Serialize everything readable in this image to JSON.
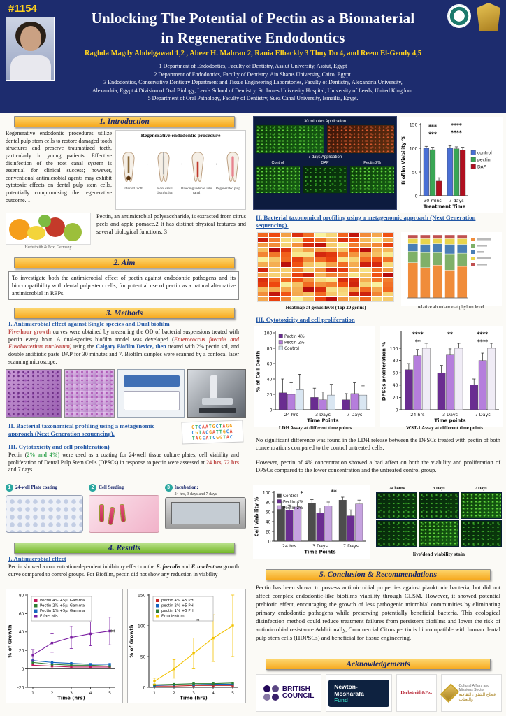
{
  "theme": {
    "header_bg": "#1d2c6e",
    "accent_yellow": "#ffd21e",
    "section_orange": "#f6a91f",
    "section_green": "#74b728",
    "heading_blue": "#2055a4"
  },
  "header": {
    "poster_number": "#1154",
    "title_line1": "Unlocking The Potential of Pectin as a Biomaterial",
    "title_line2": "in Regenerative Endodontics",
    "authors": "Raghda Magdy Abdelgawad 1,2 , Abeer H. Mahran 2, Rania Elbackly 3  Thuy Do 4, and Reem El-Gendy 4,5",
    "affiliations": [
      "1 Department of Endodontics, Faculty of Dentistry, Assiut University, Assiut, Egypt",
      "2 Department of Endodontics, Faculty of Dentistry, Ain Shams University, Cairo, Egypt.",
      "3 Endodontics, Conservative Dentistry Department and Tissue Engineering Laboratories, Faculty of Dentistry, Alexandria University,",
      "Alexandria, Egypt.4 Division of Oral Biology, Leeds School of Dentistry, St. James University Hospital, University of Leeds, United Kingdom.",
      "5 Department of Oral Pathology, Faculty of Dentistry, Suez Canal University, Ismailia, Egypt."
    ]
  },
  "intro": {
    "heading": "1. Introduction",
    "text": "Regenerative endodontic procedures utilize dental pulp stem cells to restore damaged tooth structures and preserve traumatized teeth, particularly in young patients. Effective disinfection of the root canal system is essential for clinical success; however, conventional antimicrobial agents may exhibit cytotoxic effects on dental pulp stem cells, potentially compromising the regenerative outcome. 1",
    "diagram_title": "Regenerative endodontic procedure",
    "diagram_labels": [
      "Infected tooth",
      "Root canal disinfection",
      "Bleeding induced into canal",
      "Regenerated pulp"
    ],
    "fruit_caption": "Herbstreith & Fox, Germany",
    "pectin_text": "Pectin, an antimicrobial polysaccharide, is extracted from citrus peels and apple pomace.2 It has distinct physical features and several biological functions. 3"
  },
  "aim": {
    "heading": "2. Aim",
    "text": "To investigate both the antimicrobial effect of pectin against endodontic pathogens and its biocompatibility with dental pulp stem cells, for potential use of pectin as a natural alternative antimicrobial in REPs."
  },
  "methods": {
    "heading": "3. Methods",
    "h1": "I. Antimicrobial effect against Single species and Dual biofilm",
    "p1_a": "Five-hour growth",
    "p1_b": " curves were obtained by measuring the OD of bacterial suspensions treated with pectin every hour. A dual-species biofilm model was developed (",
    "p1_c": "Enterococcus faecalis and Fusobacterium nucleatum)",
    "p1_d": " using the ",
    "p1_e": "Calgary Biofilm Device, then",
    "p1_f": " treated with 2% pectin sol, and double antibiotic paste DAP for 30 minutes and 7. Biofilm samples were scanned by a confocal laser scanning microscope.",
    "h2": "II. Bacterial taxonomical profiling using a metagenomic approach (Next Generation sequencing).",
    "h3": "III. Cytotoxicity and cell proliferation)",
    "p2_a": "Pectin (",
    "p2_b": "2% and 4%)",
    "p2_c": " were used as a coating for 24-well tissue culture plates, cell viability and proliferation of Dental Pulp Stem Cells (DPSCs) in response to pectin were assessed at ",
    "p2_d": "24 hrs, 72 hrs",
    "p2_e": " and 7 days.",
    "dna_text": "GTCAATGCTAGG CGTACGATTGCA TAGCATCGGTAC",
    "steps": [
      {
        "num": "1",
        "label": "24-well Plate coating"
      },
      {
        "num": "2",
        "label": "Cell Seeding"
      },
      {
        "num": "3",
        "label": "Incubation:",
        "sub": "24 hrs, 3 days and 7 days"
      }
    ]
  },
  "results": {
    "heading": "4. Results",
    "h1": "I. Antimicrobial effect",
    "p1_a": "Pectin showed a concentration-dependent inhibitory effect on the ",
    "p1_b": "E. faecalis",
    "p1_c": " and ",
    "p1_d": "F. nucleatum",
    "p1_e": " growth curve compared to control groups. For Biofilm, pectin did not show any reduction in viability",
    "confocal": {
      "label_30min": "30 minutes Application",
      "label_7day": "7 days Application",
      "row_labels": [
        "Control",
        "DAP",
        "Pectin 2%"
      ]
    },
    "h2": "II. Bacterial taxonomical profiling using a metagenomic approach (Next Generation sequencing).",
    "heatmap": {
      "rows": 14,
      "cols": 12
    },
    "heatmap_caption": "Heatmap at genus level (Top 20 genus)",
    "phylum_caption": "relative abundance at phylum level",
    "h3": "III. Cytotoxicity and cell proliferation",
    "ldh_caption": "LDH Assay at different  time points",
    "wst_caption": "WST-1 Assay at different  time points",
    "note1": "No significant difference was found in the LDH release between the DPSCs treated with pectin of both concentrations compared to the control untreated cells.",
    "note2": "However, pectin of 4% concentration showed a bad affect on both the viability and proliferation of DPSCs compared to the lower concentration and the untreated control group.",
    "livedead_cols": [
      "24 hours",
      "3 Days",
      "7 Days"
    ],
    "livedead_caption": "live/dead viability stain"
  },
  "conclusion": {
    "heading": "5. Conclusion & Recommendations",
    "text": "Pectin has been shown to possess antimicrobial properties against planktonic bacteria, but did not affect complex endodontic-like biofilms viability through CLSM. However, it showed potential prebiotic effect, encouraging the growth of less pathogenic microbial communities by eliminating primary endodontic pathogens while preserving potentially beneficial bacteria. This ecological disinfection method could reduce treatment failures from persistent biofilms and lower the risk of antimicrobial resistance Additionally, Commercial Citrus pectin is biocompatible with human dental pulp stem cells (HDPSCs) and beneficial for tissue engineering."
  },
  "ack": {
    "heading": "Acknowledgements",
    "bc_line1": "BRITISH",
    "bc_line2": "COUNCIL",
    "nm_line1": "Newton-Mosharafa",
    "nm_line2": "Fund",
    "hf_text": "Herbstreith&Fox",
    "ca_line1": "Cultural Affairs and Missions Sector",
    "ca_line2": "قطاع الشئون الثقافية والبعثات"
  },
  "chart_data": [
    {
      "id": "biofilm-viability",
      "type": "bar",
      "ylabel": "Biofilm Viability %",
      "xlabel": "Treatment Time",
      "ylim": [
        0,
        150
      ],
      "yticks": [
        0,
        50,
        100,
        150
      ],
      "categories": [
        "30 mins",
        "7 days"
      ],
      "series": [
        {
          "name": "control",
          "color": "#4a6fd4",
          "values": [
            100,
            100
          ],
          "errors": [
            4,
            5
          ]
        },
        {
          "name": "pectin",
          "color": "#3aa655",
          "values": [
            97,
            99
          ],
          "errors": [
            5,
            4
          ]
        },
        {
          "name": "DAP",
          "color": "#b01020",
          "values": [
            31,
            96
          ],
          "errors": [
            7,
            6
          ]
        }
      ],
      "legend_pos": "right",
      "annotations": [
        {
          "t": "***",
          "x": 0.25,
          "y": 0.06
        },
        {
          "t": "***",
          "x": 0.25,
          "y": 0.16
        },
        {
          "t": "****",
          "x": 0.75,
          "y": 0.04
        },
        {
          "t": "****",
          "x": 0.75,
          "y": 0.14
        }
      ]
    },
    {
      "id": "ldh-assay",
      "type": "bar",
      "ylabel": "% of Cell Death",
      "xlabel": "Time Points",
      "ylim": [
        0,
        100
      ],
      "yticks": [
        0,
        20,
        40,
        60,
        80,
        100
      ],
      "categories": [
        "24 hrs",
        "3 Days",
        "7 Days"
      ],
      "series": [
        {
          "name": "Pectin 4%",
          "color": "#6a2d91",
          "values": [
            22,
            16,
            13
          ],
          "errors": [
            18,
            12,
            8
          ]
        },
        {
          "name": "Pectin 2%",
          "color": "#b57edc",
          "values": [
            20,
            13,
            21
          ],
          "errors": [
            15,
            10,
            14
          ]
        },
        {
          "name": "Control",
          "color": "#d9e6f2",
          "values": [
            26,
            19,
            19
          ],
          "errors": [
            20,
            14,
            12
          ]
        }
      ],
      "legend_pos": "inside"
    },
    {
      "id": "wst1-assay",
      "type": "bar",
      "ylabel": "DPSCs proliferation %",
      "xlabel": "Time points",
      "ylim": [
        0,
        125
      ],
      "yticks": [
        0,
        20,
        40,
        60,
        80,
        100
      ],
      "categories": [
        "24 hrs",
        "3 Days",
        "7 Days"
      ],
      "series": [
        {
          "name": "Pectin 4%",
          "color": "#6a2d91",
          "values": [
            65,
            60,
            40
          ],
          "errors": [
            10,
            12,
            10
          ]
        },
        {
          "name": "Pectin 2%",
          "color": "#b57edc",
          "values": [
            88,
            90,
            80
          ],
          "errors": [
            10,
            9,
            12
          ]
        },
        {
          "name": "Control",
          "color": "#f0ecf6",
          "values": [
            100,
            100,
            100
          ],
          "errors": [
            8,
            8,
            8
          ]
        }
      ],
      "annotations": [
        {
          "t": "****",
          "x": 0.17,
          "y": 0.04
        },
        {
          "t": "**",
          "x": 0.17,
          "y": 0.14
        },
        {
          "t": "**",
          "x": 0.5,
          "y": 0.04
        },
        {
          "t": "****",
          "x": 0.83,
          "y": 0.04
        },
        {
          "t": "****",
          "x": 0.83,
          "y": 0.14
        }
      ]
    },
    {
      "id": "cell-viability",
      "type": "bar",
      "ylabel": "Cell viability %",
      "xlabel": "Time Points",
      "ylim": [
        0,
        100
      ],
      "yticks": [
        0,
        20,
        40,
        60,
        80,
        100
      ],
      "categories": [
        "24 hrs",
        "3 Days",
        "7 Days"
      ],
      "series": [
        {
          "name": "Control",
          "color": "#4d4d4d",
          "values": [
            72,
            78,
            84
          ],
          "errors": [
            8,
            7,
            6
          ]
        },
        {
          "name": "Pectin 4%",
          "color": "#6a2d91",
          "values": [
            64,
            58,
            52
          ],
          "errors": [
            10,
            10,
            12
          ]
        },
        {
          "name": "Pectin 2%",
          "color": "#c6a3e0",
          "values": [
            70,
            72,
            76
          ],
          "errors": [
            8,
            8,
            8
          ]
        }
      ],
      "legend_pos": "inside",
      "annotations": [
        {
          "t": "*",
          "x": 0.3,
          "y": 0.06
        },
        {
          "t": "**",
          "x": 0.65,
          "y": 0.03
        }
      ]
    },
    {
      "id": "growth-e-faecalis",
      "type": "line",
      "ylabel": "% of Growth",
      "xlabel": "Time (hrs)",
      "ylim": [
        -20,
        80
      ],
      "yticks": [
        -20,
        0,
        20,
        40,
        60,
        80
      ],
      "x": [
        1,
        2,
        3,
        4,
        5
      ],
      "series": [
        {
          "name": "Pectin 4% +5µl Gamma",
          "color": "#c2185b",
          "values": [
            4,
            3,
            2,
            2,
            2
          ]
        },
        {
          "name": "Pectin 2% +5µl Gamma",
          "color": "#2e7d32",
          "values": [
            7,
            5,
            4,
            4,
            3
          ]
        },
        {
          "name": "Pectin 1% +5µl Gamma",
          "color": "#1565c0",
          "values": [
            9,
            7,
            6,
            5,
            5
          ]
        },
        {
          "name": "E.faecalis",
          "color": "#7b1fa2",
          "values": [
            15,
            28,
            34,
            38,
            41
          ],
          "errors": [
            6,
            10,
            12,
            13,
            15
          ]
        }
      ],
      "annotations": [
        {
          "t": "**",
          "x": 0.97,
          "y": 0.42
        }
      ]
    },
    {
      "id": "growth-f-nucleatum",
      "type": "line",
      "ylabel": "% of Growth",
      "xlabel": "Time (hrs)",
      "ylim": [
        0,
        150
      ],
      "yticks": [
        0,
        50,
        100,
        150
      ],
      "x": [
        1,
        2,
        3,
        4,
        5
      ],
      "series": [
        {
          "name": "pectin 4% +5 PH",
          "color": "#c62828",
          "values": [
            2,
            2,
            3,
            3,
            3
          ]
        },
        {
          "name": "pectin 2% +5 PH",
          "color": "#1565c0",
          "values": [
            3,
            4,
            4,
            5,
            5
          ]
        },
        {
          "name": "pectin 1% +5 PH",
          "color": "#2e7d32",
          "values": [
            4,
            5,
            6,
            6,
            7
          ]
        },
        {
          "name": "F.nucleatum",
          "color": "#f2c200",
          "values": [
            10,
            30,
            55,
            80,
            100
          ],
          "errors": [
            5,
            15,
            25,
            38,
            50
          ]
        }
      ],
      "annotations": [
        {
          "t": "*",
          "x": 0.55,
          "y": 0.3
        }
      ]
    },
    {
      "id": "phylum-abundance",
      "type": "stacked-bar",
      "bars": [
        [
          56,
          18,
          12,
          8,
          6
        ],
        [
          48,
          24,
          13,
          9,
          6
        ],
        [
          52,
          20,
          14,
          8,
          6
        ],
        [
          44,
          26,
          15,
          9,
          6
        ],
        [
          50,
          21,
          14,
          9,
          6
        ]
      ],
      "colors": [
        "#f08c3a",
        "#7fb069",
        "#4a7fb5",
        "#e8d44d",
        "#c05050"
      ]
    }
  ]
}
